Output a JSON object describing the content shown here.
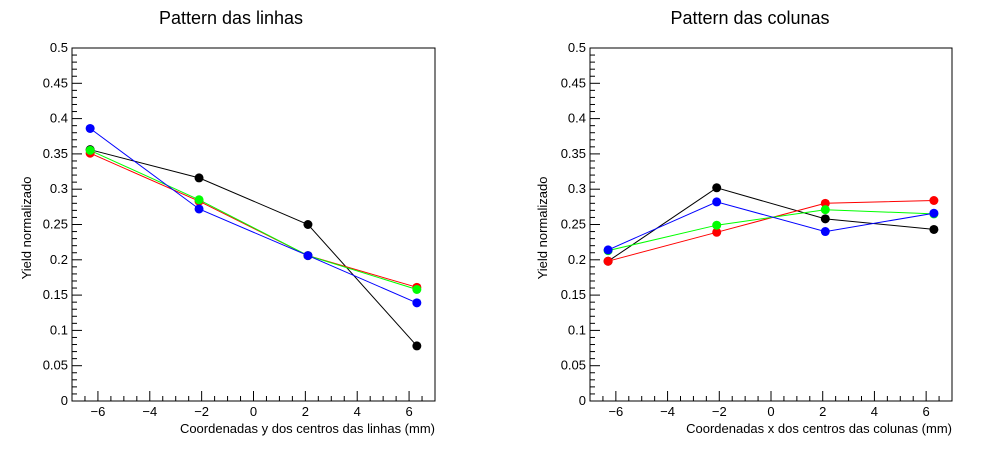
{
  "chart_data": [
    {
      "type": "line",
      "title": "Pattern das linhas",
      "xlabel": "Coordenadas y dos centros das linhas (mm)",
      "ylabel": "Yield normalizado",
      "xlim": [
        -7,
        7
      ],
      "ylim": [
        0,
        0.5
      ],
      "x_ticks": [
        -6,
        -4,
        -2,
        0,
        2,
        4,
        6
      ],
      "x_tick_labels": [
        "−6",
        "−4",
        "−2",
        "0",
        "2",
        "4",
        "6"
      ],
      "y_ticks": [
        0,
        0.05,
        0.1,
        0.15,
        0.2,
        0.25,
        0.3,
        0.35,
        0.4,
        0.45,
        0.5
      ],
      "y_tick_labels": [
        "0",
        "0.05",
        "0.1",
        "0.15",
        "0.2",
        "0.25",
        "0.3",
        "0.35",
        "0.4",
        "0.45",
        "0.5"
      ],
      "grid": false,
      "legend": "none",
      "series": [
        {
          "color": "#000000",
          "x": [
            -6.3,
            -2.1,
            2.1,
            6.3
          ],
          "y": [
            0.356,
            0.316,
            0.25,
            0.078
          ]
        },
        {
          "color": "#ff0000",
          "x": [
            -6.3,
            -2.1,
            2.1,
            6.3
          ],
          "y": [
            0.351,
            0.283,
            0.206,
            0.161
          ]
        },
        {
          "color": "#00ff00",
          "x": [
            -6.3,
            -2.1,
            2.1,
            6.3
          ],
          "y": [
            0.355,
            0.285,
            0.206,
            0.158
          ]
        },
        {
          "color": "#0000ff",
          "x": [
            -6.3,
            -2.1,
            2.1,
            6.3
          ],
          "y": [
            0.386,
            0.272,
            0.206,
            0.139
          ]
        }
      ]
    },
    {
      "type": "line",
      "title": "Pattern das colunas",
      "xlabel": "Coordenadas x dos centros das colunas (mm)",
      "ylabel": "Yield normalizado",
      "xlim": [
        -7,
        7
      ],
      "ylim": [
        0,
        0.5
      ],
      "x_ticks": [
        -6,
        -4,
        -2,
        0,
        2,
        4,
        6
      ],
      "x_tick_labels": [
        "−6",
        "−4",
        "−2",
        "0",
        "2",
        "4",
        "6"
      ],
      "y_ticks": [
        0,
        0.05,
        0.1,
        0.15,
        0.2,
        0.25,
        0.3,
        0.35,
        0.4,
        0.45,
        0.5
      ],
      "y_tick_labels": [
        "0",
        "0.05",
        "0.1",
        "0.15",
        "0.2",
        "0.25",
        "0.3",
        "0.35",
        "0.4",
        "0.45",
        "0.5"
      ],
      "grid": false,
      "legend": "none",
      "series": [
        {
          "color": "#000000",
          "x": [
            -6.3,
            -2.1,
            2.1,
            6.3
          ],
          "y": [
            0.198,
            0.302,
            0.258,
            0.243
          ]
        },
        {
          "color": "#ff0000",
          "x": [
            -6.3,
            -2.1,
            2.1,
            6.3
          ],
          "y": [
            0.198,
            0.239,
            0.28,
            0.284
          ]
        },
        {
          "color": "#00ff00",
          "x": [
            -6.3,
            -2.1,
            2.1,
            6.3
          ],
          "y": [
            0.213,
            0.249,
            0.271,
            0.265
          ]
        },
        {
          "color": "#0000ff",
          "x": [
            -6.3,
            -2.1,
            2.1,
            6.3
          ],
          "y": [
            0.214,
            0.282,
            0.24,
            0.266
          ]
        }
      ]
    }
  ]
}
